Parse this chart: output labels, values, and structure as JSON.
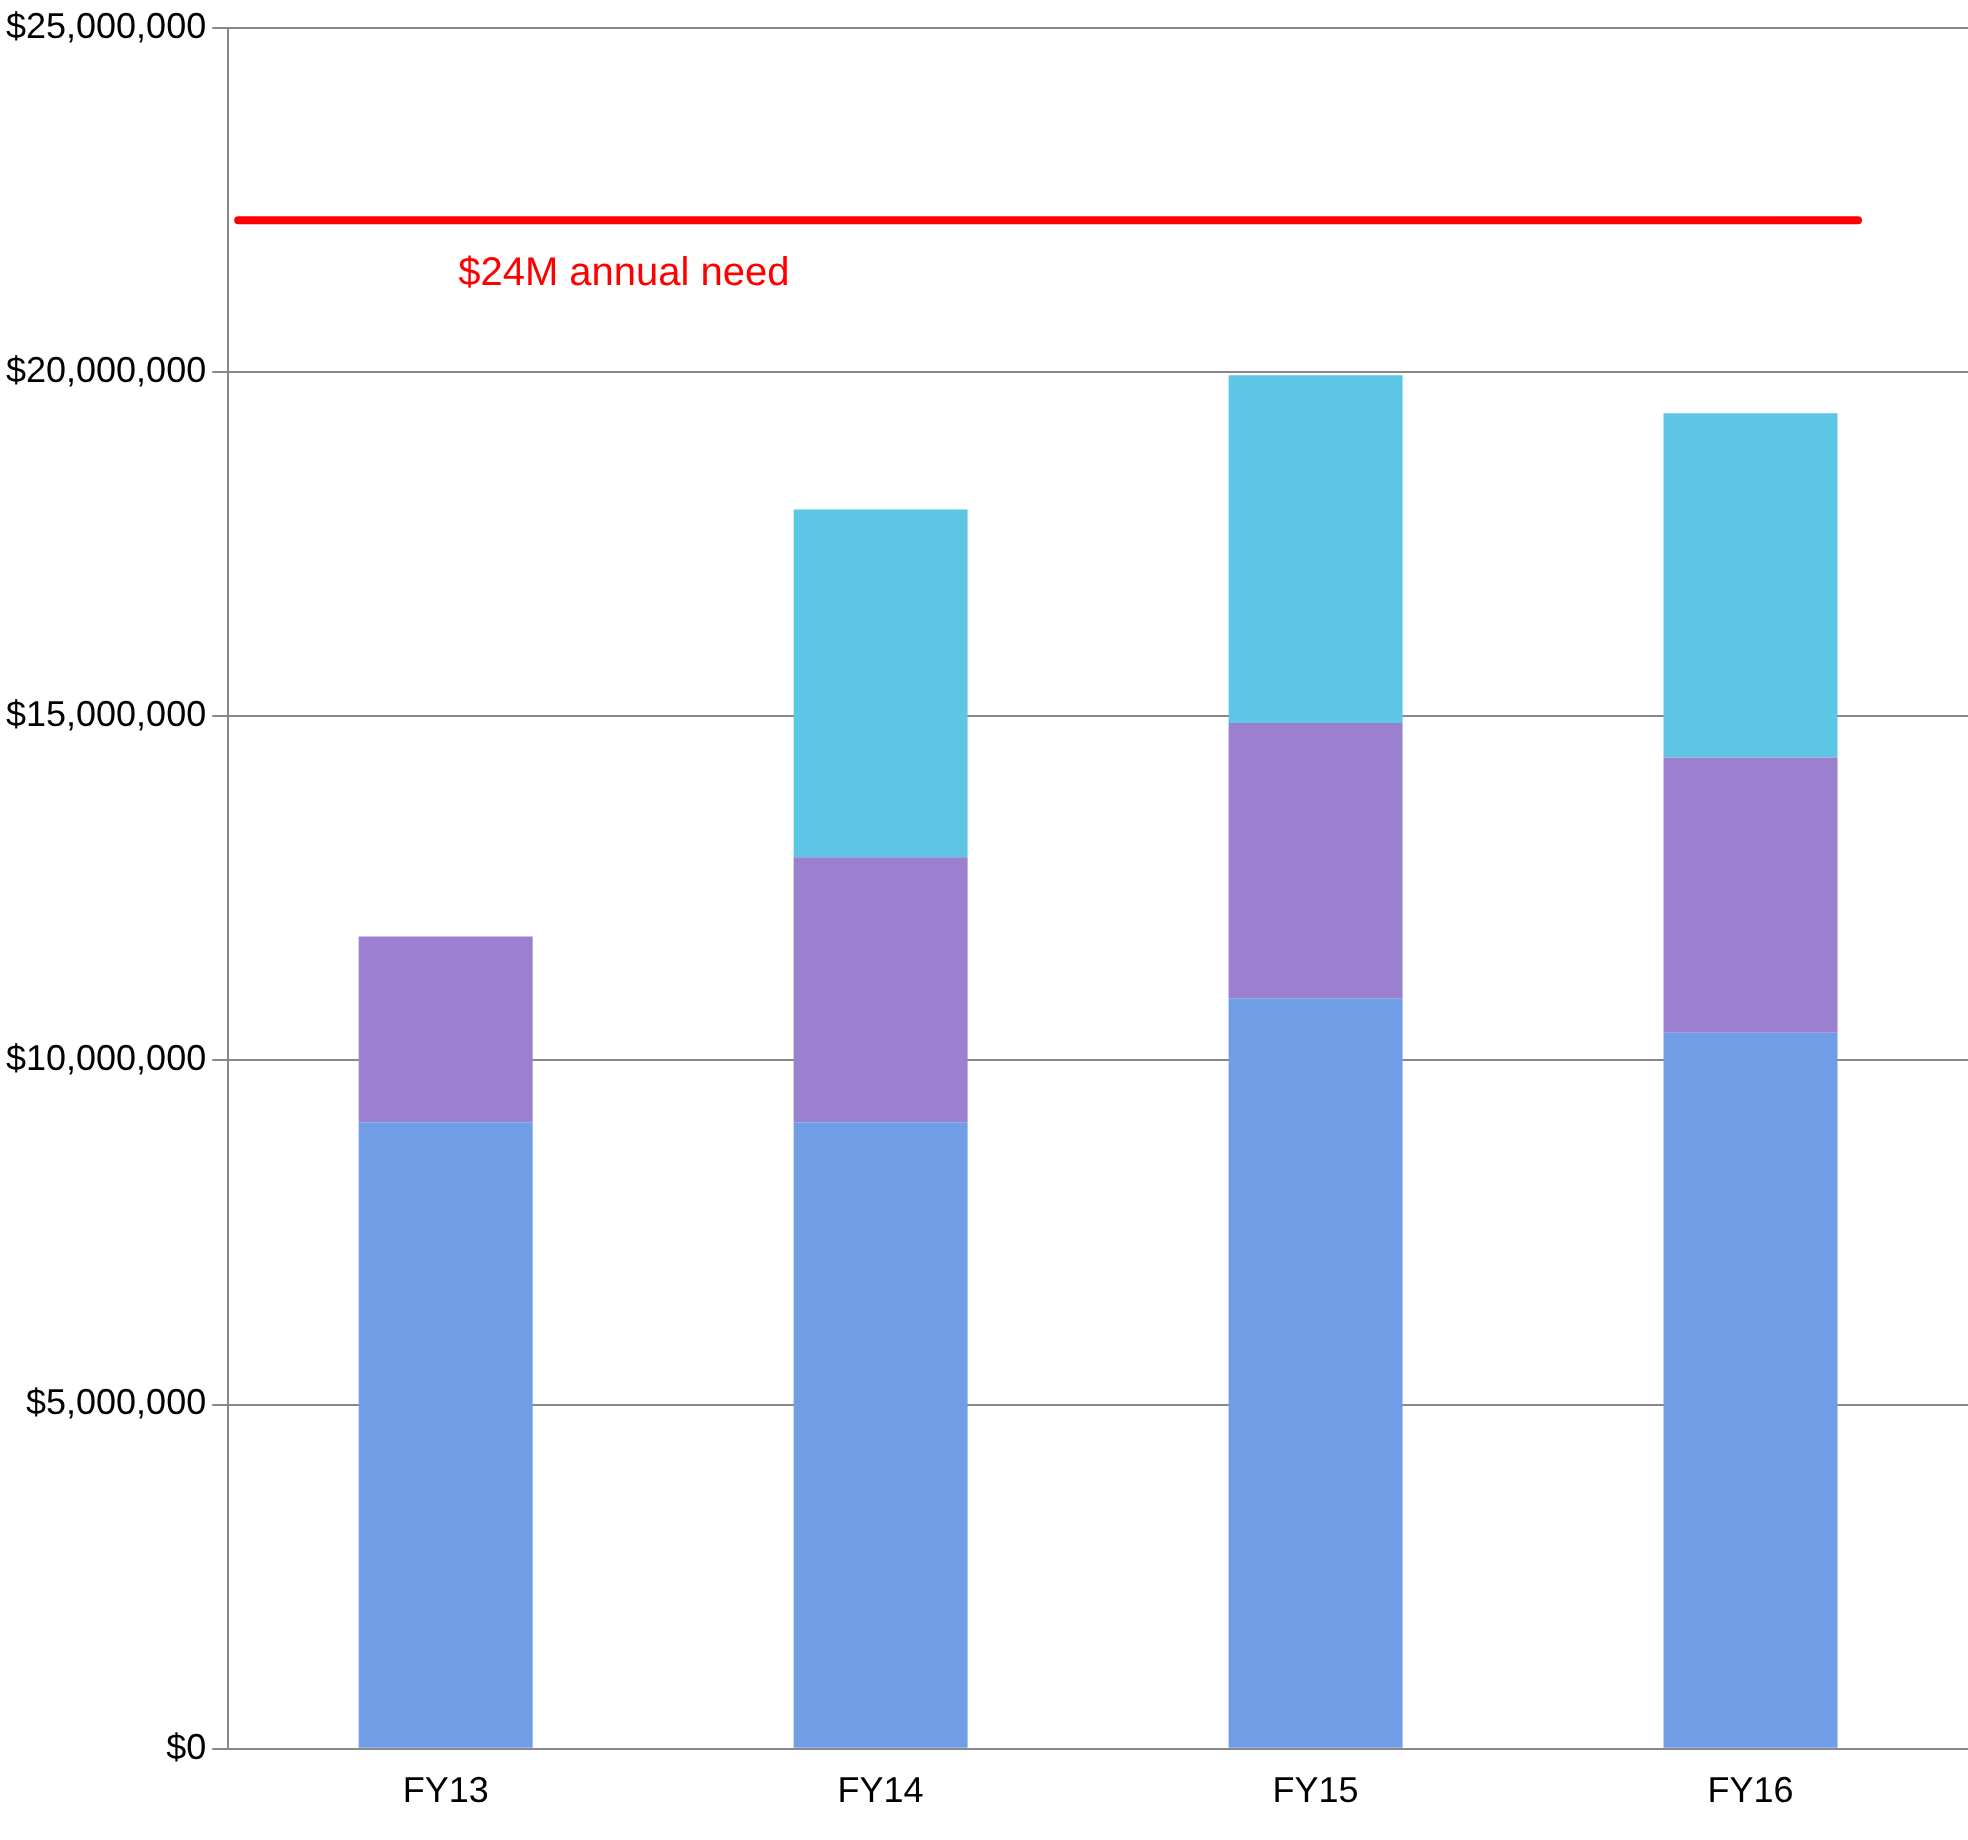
{
  "chart_data": {
    "type": "bar",
    "stacked": true,
    "categories": [
      "FY13",
      "FY14",
      "FY15",
      "FY16"
    ],
    "series": [
      {
        "color": "#6f9ee6",
        "values": [
          9100000,
          9100000,
          10900000,
          10400000
        ]
      },
      {
        "color": "#9b80d0",
        "values": [
          2700000,
          3850000,
          4000000,
          4000000
        ]
      },
      {
        "color": "#5cc6e4",
        "values": [
          null,
          5050000,
          5050000,
          5000000
        ]
      }
    ],
    "ylim": [
      0,
      25000000
    ],
    "yticks": [
      {
        "value": 0,
        "label": "$0"
      },
      {
        "value": 5000000,
        "label": "$5,000,000"
      },
      {
        "value": 10000000,
        "label": "$10,000,000"
      },
      {
        "value": 15000000,
        "label": "$15,000,000"
      },
      {
        "value": 20000000,
        "label": "$20,000,000"
      },
      {
        "value": 25000000,
        "label": "$25,000,000"
      }
    ],
    "ref_lines": [
      {
        "axis": "y",
        "value": 22200000,
        "label": "$24M annual need",
        "color": "#ff0000"
      }
    ],
    "grid": "y",
    "legend": false
  }
}
